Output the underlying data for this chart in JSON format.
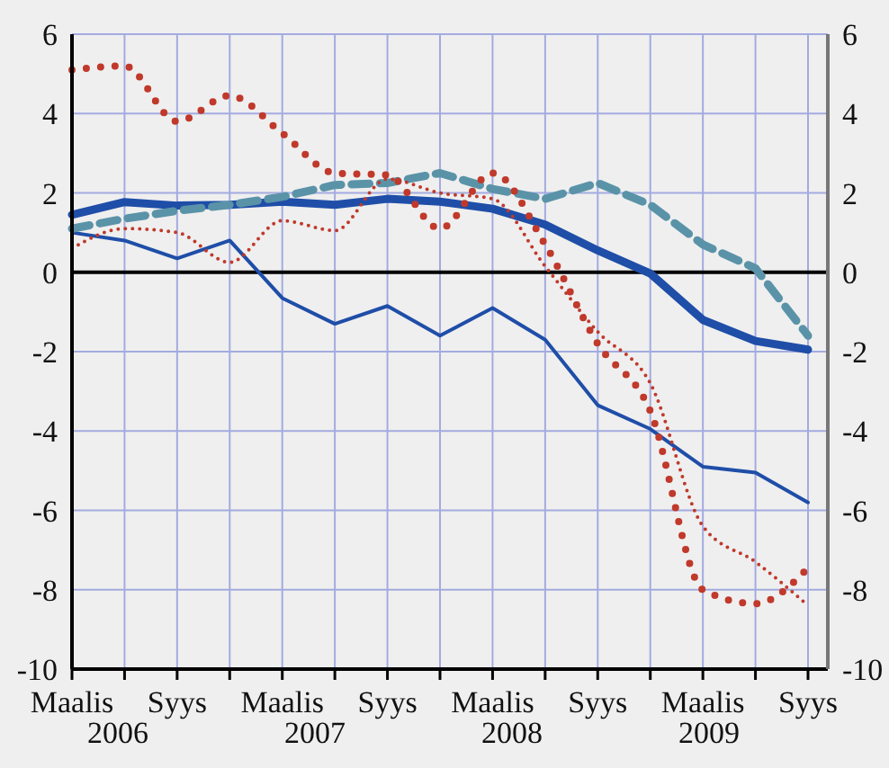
{
  "chart_data": {
    "type": "line",
    "categories": [
      "Maalis",
      null,
      "Syys",
      null,
      "Maalis",
      null,
      "Syys",
      null,
      "Maalis",
      null,
      "Syys",
      null,
      "Maalis",
      null,
      "Syys"
    ],
    "annotations": [
      "2006",
      "2007",
      "2008",
      "2009"
    ],
    "ylim": [
      -10,
      6
    ],
    "yticks": [
      -10,
      -8,
      -6,
      -4,
      -2,
      0,
      2,
      4,
      6
    ],
    "y2lim": [
      -10,
      6
    ],
    "y2ticks": [
      -10,
      -8,
      -6,
      -4,
      -2,
      0,
      2,
      4,
      6
    ],
    "grid": true,
    "legend": false,
    "marker": "none",
    "ref_lines": [
      {
        "axis": "y",
        "value": 0,
        "color": "#000000"
      }
    ],
    "series": [
      {
        "color": "#1f4ea8",
        "line_style": "solid",
        "values": [
          1.45,
          1.77,
          1.68,
          1.7,
          1.78,
          1.7,
          1.85,
          1.78,
          1.6,
          1.2,
          0.55,
          -0.03,
          -1.2,
          -1.73,
          -1.95
        ]
      },
      {
        "color": "#1f4ea8",
        "line_style": "solid",
        "values": [
          1.0,
          0.8,
          0.35,
          0.8,
          -0.65,
          -1.3,
          -0.85,
          -1.6,
          -0.9,
          -1.7,
          -3.35,
          -3.95,
          -4.9,
          -5.05,
          -5.8
        ]
      },
      {
        "color": "#5a93a8",
        "line_style": "dashed",
        "values": [
          1.1,
          1.35,
          1.55,
          1.7,
          1.9,
          2.2,
          2.25,
          2.5,
          2.1,
          1.85,
          2.25,
          1.7,
          0.7,
          0.1,
          -1.6
        ]
      },
      {
        "color": "#c0392b",
        "line_style": "dotted",
        "values": [
          5.1,
          5.2,
          3.8,
          4.45,
          3.5,
          2.5,
          2.45,
          1.1,
          2.5,
          0.7,
          -1.8,
          -3.5,
          -8.0,
          -8.35,
          -7.45
        ]
      },
      {
        "color": "#c0392b",
        "line_style": "dotted",
        "values": [
          0.6,
          1.1,
          1.0,
          0.25,
          1.3,
          1.05,
          2.35,
          2.0,
          1.85,
          0.15,
          -1.5,
          -2.8,
          -6.4,
          -7.3,
          -8.4
        ]
      }
    ]
  }
}
